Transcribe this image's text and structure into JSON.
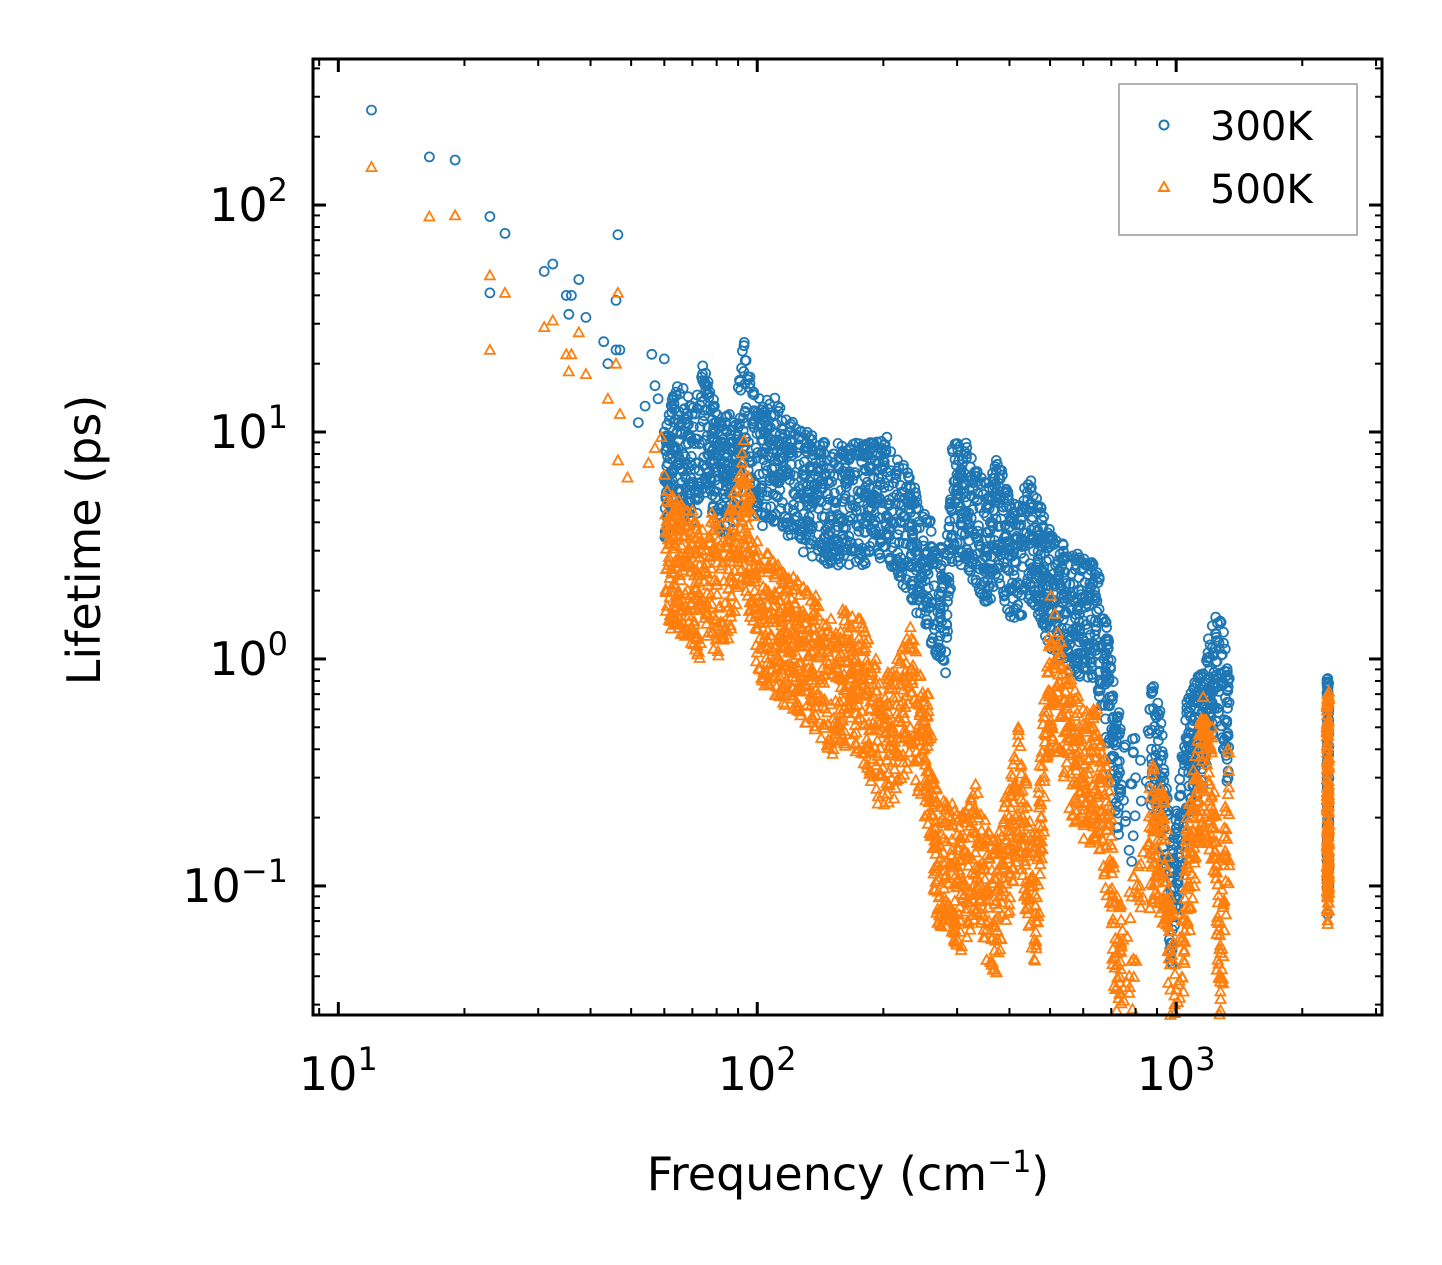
{
  "chart_data": {
    "type": "scatter",
    "title": "",
    "xlabel": "Frequency (cm",
    "xlabel_sup": "−1",
    "xlabel_close": ")",
    "ylabel": "Lifetime (ps)",
    "xscale": "log",
    "yscale": "log",
    "xlim": [
      8.7,
      3100
    ],
    "ylim": [
      0.027,
      440
    ],
    "x_ticks": [
      {
        "value": 10,
        "base": "10",
        "exp": "1"
      },
      {
        "value": 100,
        "base": "10",
        "exp": "2"
      },
      {
        "value": 1000,
        "base": "10",
        "exp": "3"
      }
    ],
    "y_ticks": [
      {
        "value": 0.1,
        "base": "10",
        "exp": "−1"
      },
      {
        "value": 1,
        "base": "10",
        "exp": "0"
      },
      {
        "value": 10,
        "base": "10",
        "exp": "1"
      },
      {
        "value": 100,
        "base": "10",
        "exp": "2"
      }
    ],
    "legend_position": "top-right",
    "series": [
      {
        "name": "300K",
        "marker": "circle",
        "color": "#1f77b4",
        "points": [
          [
            12,
            262
          ],
          [
            16.5,
            163
          ],
          [
            19,
            158
          ],
          [
            23,
            89
          ],
          [
            25,
            75
          ],
          [
            23,
            41
          ],
          [
            31,
            51
          ],
          [
            32.5,
            55
          ],
          [
            35,
            40
          ],
          [
            36,
            40
          ],
          [
            35.5,
            33
          ],
          [
            37.5,
            47
          ],
          [
            39,
            32
          ],
          [
            43,
            25
          ],
          [
            46,
            38
          ],
          [
            46.5,
            74
          ],
          [
            46,
            23
          ],
          [
            47,
            23
          ],
          [
            44,
            20
          ],
          [
            56,
            22
          ],
          [
            60,
            21
          ],
          [
            57,
            16
          ],
          [
            58,
            14
          ],
          [
            54,
            13
          ],
          [
            52,
            11
          ],
          [
            60,
            10
          ],
          [
            64,
            15
          ],
          [
            69,
            13
          ],
          [
            71,
            12
          ],
          [
            74,
            18
          ],
          [
            76,
            16
          ],
          [
            79,
            13
          ],
          [
            82,
            11
          ],
          [
            88,
            11
          ],
          [
            93,
            24
          ],
          [
            95,
            17
          ],
          [
            98,
            15
          ],
          [
            102,
            12
          ],
          [
            112,
            13
          ],
          [
            120,
            10
          ],
          [
            131,
            9
          ],
          [
            152,
            8
          ],
          [
            176,
            8
          ],
          [
            202,
            8.8
          ],
          [
            232,
            5.8
          ],
          [
            254,
            4
          ],
          [
            282,
            2.7
          ],
          [
            292,
            8.4
          ],
          [
            316,
            8
          ],
          [
            330,
            6.4
          ],
          [
            358,
            5.2
          ],
          [
            372,
            7.5
          ],
          [
            405,
            4.2
          ],
          [
            448,
            5.6
          ],
          [
            502,
            3.2
          ],
          [
            578,
            2.6
          ],
          [
            648,
            2.4
          ],
          [
            688,
            1.2
          ],
          [
            722,
            0.55
          ],
          [
            790,
            0.39
          ],
          [
            880,
            0.72
          ],
          [
            920,
            0.52
          ],
          [
            975,
            0.12
          ],
          [
            1060,
            0.58
          ],
          [
            1160,
            0.86
          ],
          [
            1220,
            1.4
          ],
          [
            1280,
            1.45
          ],
          [
            1330,
            0.8
          ],
          [
            2300,
            0.82
          ],
          [
            2300,
            0.09
          ],
          [
            2300,
            0.075
          ]
        ]
      },
      {
        "name": "500K",
        "marker": "triangle",
        "color": "#ff7f0e",
        "points": [
          [
            12,
            147
          ],
          [
            16.5,
            89
          ],
          [
            19,
            90
          ],
          [
            23,
            49
          ],
          [
            25,
            41
          ],
          [
            23,
            23
          ],
          [
            31,
            29
          ],
          [
            32.5,
            31
          ],
          [
            35,
            22
          ],
          [
            36,
            22
          ],
          [
            35.5,
            18.5
          ],
          [
            37.5,
            27.5
          ],
          [
            39,
            18
          ],
          [
            44,
            14
          ],
          [
            46.5,
            41
          ],
          [
            46,
            20
          ],
          [
            47,
            12
          ],
          [
            46.5,
            7.5
          ],
          [
            49,
            6.3
          ],
          [
            55,
            7.3
          ],
          [
            57,
            8.5
          ],
          [
            59,
            9.5
          ],
          [
            61,
            5.5
          ],
          [
            65,
            5
          ],
          [
            70,
            4.5
          ],
          [
            74,
            3.7
          ],
          [
            78,
            4.4
          ],
          [
            82,
            3.9
          ],
          [
            86,
            4.5
          ],
          [
            93,
            9.2
          ],
          [
            100,
            3.3
          ],
          [
            112,
            2.6
          ],
          [
            122,
            2.3
          ],
          [
            138,
            1.9
          ],
          [
            150,
            1.5
          ],
          [
            160,
            1.65
          ],
          [
            176,
            1.5
          ],
          [
            192,
            1
          ],
          [
            196,
            0.78
          ],
          [
            216,
            1
          ],
          [
            232,
            1.38
          ],
          [
            256,
            0.7
          ],
          [
            268,
            0.27
          ],
          [
            292,
            0.23
          ],
          [
            304,
            0.2
          ],
          [
            332,
            0.28
          ],
          [
            358,
            0.17
          ],
          [
            375,
            0.16
          ],
          [
            420,
            0.5
          ],
          [
            460,
            0.16
          ],
          [
            502,
            1.9
          ],
          [
            550,
            0.9
          ],
          [
            600,
            0.6
          ],
          [
            648,
            0.6
          ],
          [
            690,
            0.3
          ],
          [
            722,
            0.09
          ],
          [
            790,
            0.11
          ],
          [
            880,
            0.34
          ],
          [
            940,
            0.25
          ],
          [
            978,
            0.08
          ],
          [
            1000,
            0.035
          ],
          [
            1060,
            0.2
          ],
          [
            1160,
            0.68
          ],
          [
            1220,
            0.5
          ],
          [
            1270,
            0.07
          ],
          [
            1330,
            0.4
          ],
          [
            2300,
            0.7
          ],
          [
            2300,
            0.17
          ],
          [
            2300,
            0.068
          ]
        ]
      }
    ]
  }
}
